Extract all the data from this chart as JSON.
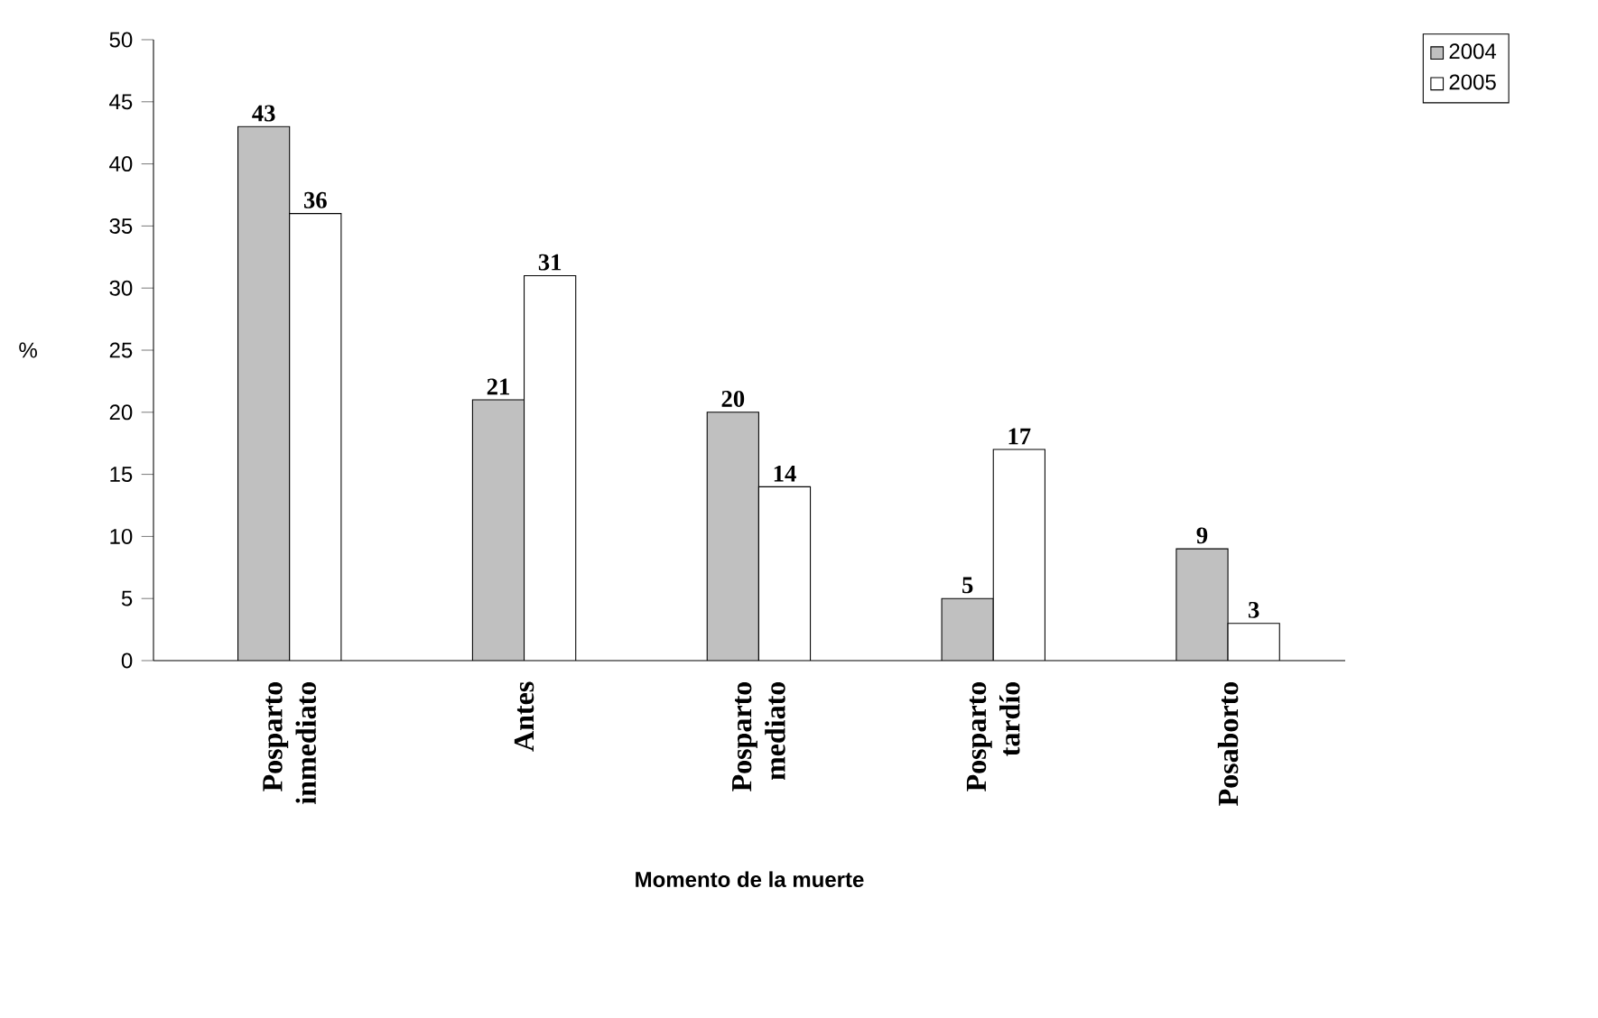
{
  "chart_data": {
    "type": "bar",
    "categories": [
      "Posparto inmediato",
      "Antes",
      "Posparto mediato",
      "Posparto tardío",
      "Posaborto"
    ],
    "series": [
      {
        "name": "2004",
        "color": "#c0c0c0",
        "values": [
          43,
          21,
          20,
          5,
          9
        ]
      },
      {
        "name": "2005",
        "color": "#ffffff",
        "values": [
          36,
          31,
          14,
          17,
          3
        ]
      }
    ],
    "xlabel": "Momento de la muerte",
    "ylabel": "%",
    "ylim": [
      0,
      50
    ],
    "yticks": [
      0,
      5,
      10,
      15,
      20,
      25,
      30,
      35,
      40,
      45,
      50
    ],
    "data_labels": true,
    "legend": "top right",
    "grid": false
  }
}
